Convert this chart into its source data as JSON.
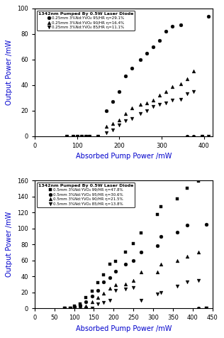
{
  "top": {
    "title": "1342nm Pumped By 0.5W Laser Diode",
    "xlabel": "Absorbed Pump Power /mW",
    "ylabel": "Output Power /mW",
    "xlim": [
      0,
      420
    ],
    "ylim": [
      0,
      100
    ],
    "xticks": [
      0,
      100,
      200,
      300,
      400
    ],
    "yticks": [
      0,
      20,
      40,
      60,
      80,
      100
    ],
    "series": [
      {
        "label": "0.25mm 3%Nd:YVO₄ 95/HR η=29.1%",
        "marker": "o",
        "markersize": 3.5,
        "x": [
          75,
          90,
          100,
          110,
          120,
          130,
          150,
          170,
          185,
          200,
          215,
          230,
          250,
          265,
          280,
          295,
          310,
          325,
          345,
          360,
          375,
          395,
          410
        ],
        "y": [
          0,
          0,
          0,
          0,
          0,
          0,
          0,
          20,
          27,
          35,
          47,
          53,
          60,
          65,
          70,
          75,
          82,
          86,
          87,
          0,
          0,
          0,
          94
        ]
      },
      {
        "label": "0.25mm 3%Nd:YVO₄ 90/HR η=16.4%",
        "marker": "^",
        "markersize": 3.5,
        "x": [
          75,
          90,
          100,
          110,
          120,
          130,
          150,
          170,
          185,
          200,
          215,
          230,
          250,
          265,
          280,
          295,
          310,
          325,
          345,
          360,
          375,
          395,
          410
        ],
        "y": [
          0,
          0,
          0,
          0,
          0,
          0,
          0,
          8,
          10,
          13,
          18,
          22,
          25,
          26,
          28,
          32,
          35,
          39,
          41,
          45,
          51,
          0,
          0
        ]
      },
      {
        "label": "0.25mm 3%Nd:YVO₄ 85/HR η=11.1%",
        "marker": "v",
        "markersize": 3.5,
        "x": [
          75,
          90,
          100,
          110,
          120,
          130,
          150,
          170,
          185,
          200,
          215,
          230,
          250,
          265,
          280,
          295,
          310,
          325,
          345,
          360,
          375,
          395,
          410
        ],
        "y": [
          0,
          0,
          0,
          0,
          0,
          0,
          0,
          3,
          5,
          9,
          12,
          14,
          18,
          20,
          23,
          25,
          26,
          28,
          29,
          33,
          35,
          0,
          0
        ]
      }
    ]
  },
  "bottom": {
    "title": "1342nm Pumped By 0.5W Laser Diode",
    "xlabel": "Absorbed Pump Power /mW",
    "ylabel": "Output Power /mW",
    "xlim": [
      0,
      450
    ],
    "ylim": [
      0,
      160
    ],
    "xticks": [
      0,
      50,
      100,
      150,
      200,
      250,
      300,
      350,
      400,
      450
    ],
    "yticks": [
      0,
      20,
      40,
      60,
      80,
      100,
      120,
      140,
      160
    ],
    "series": [
      {
        "label": "0.5mm 3%Nd:YVO₄ 99/HR η=47.8%",
        "marker": "s",
        "markersize": 3.5,
        "x": [
          75,
          90,
          100,
          115,
          130,
          145,
          160,
          175,
          190,
          205,
          230,
          250,
          270,
          310,
          320,
          360,
          385,
          415,
          435
        ],
        "y": [
          0,
          0,
          3,
          5,
          13,
          21,
          32,
          42,
          55,
          59,
          70,
          81,
          94,
          117,
          127,
          137,
          150,
          159,
          0
        ]
      },
      {
        "label": "0.5mm 3%Nd:YVO₄ 95/HR η=30.6%",
        "marker": "o",
        "markersize": 3.5,
        "x": [
          75,
          90,
          100,
          115,
          130,
          145,
          160,
          175,
          190,
          205,
          230,
          250,
          270,
          310,
          320,
          360,
          385,
          415,
          435
        ],
        "y": [
          0,
          0,
          2,
          4,
          8,
          15,
          22,
          33,
          38,
          46,
          55,
          60,
          70,
          78,
          90,
          95,
          104,
          0,
          105
        ]
      },
      {
        "label": "0.5mm 3%Nd:YVO₄ 90/HR η=21.5%",
        "marker": "^",
        "markersize": 3.5,
        "x": [
          75,
          90,
          100,
          115,
          130,
          145,
          160,
          175,
          190,
          205,
          230,
          250,
          270,
          310,
          320,
          360,
          385,
          415,
          435
        ],
        "y": [
          0,
          0,
          0,
          0,
          3,
          8,
          13,
          19,
          25,
          29,
          30,
          35,
          45,
          45,
          55,
          60,
          65,
          70,
          0
        ]
      },
      {
        "label": "0.5mm 3%Nd:YVO₄ 85/HR η=13.8%",
        "marker": "v",
        "markersize": 3.5,
        "x": [
          75,
          90,
          100,
          115,
          130,
          145,
          160,
          175,
          190,
          205,
          230,
          250,
          270,
          310,
          320,
          360,
          385,
          415,
          435
        ],
        "y": [
          0,
          0,
          0,
          0,
          0,
          0,
          5,
          7,
          10,
          22,
          24,
          26,
          10,
          18,
          20,
          28,
          33,
          35,
          0
        ]
      }
    ]
  },
  "spine_color": "#000000",
  "label_color": "#0000cc",
  "tick_color": "#000000",
  "data_color": "#000000",
  "bg_color": "#ffffff"
}
